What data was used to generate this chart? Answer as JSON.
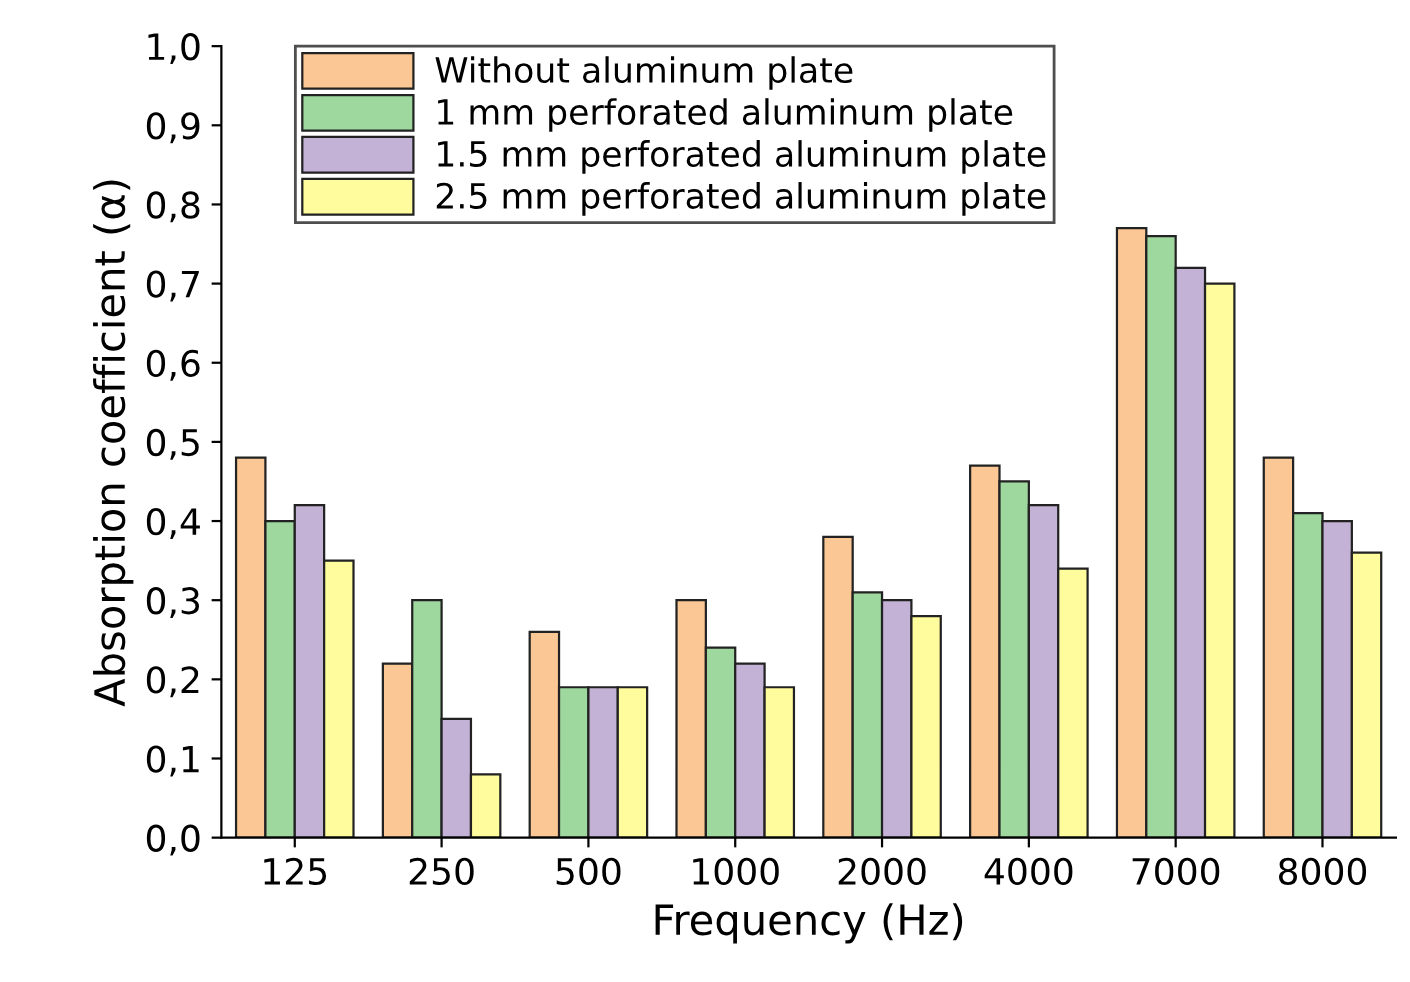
{
  "chart_data": {
    "type": "bar",
    "xlabel": "Frequency (Hz)",
    "ylabel": "Absorption coefficient (α)",
    "categories": [
      "125",
      "250",
      "500",
      "1000",
      "2000",
      "4000",
      "7000",
      "8000"
    ],
    "series": [
      {
        "name": "Without aluminum plate",
        "color": "#fbc794",
        "values": [
          0.48,
          0.22,
          0.26,
          0.3,
          0.38,
          0.47,
          0.77,
          0.48
        ]
      },
      {
        "name": "1 mm perforated aluminum plate",
        "color": "#9fd89f",
        "values": [
          0.4,
          0.3,
          0.19,
          0.24,
          0.31,
          0.45,
          0.76,
          0.41
        ]
      },
      {
        "name": "1.5 mm perforated aluminum plate",
        "color": "#c3b2d6",
        "values": [
          0.42,
          0.15,
          0.19,
          0.22,
          0.3,
          0.42,
          0.72,
          0.4
        ]
      },
      {
        "name": "2.5 mm perforated aluminum plate",
        "color": "#fffc9e",
        "values": [
          0.35,
          0.08,
          0.19,
          0.19,
          0.28,
          0.34,
          0.7,
          0.36
        ]
      }
    ],
    "ylim": [
      0,
      1.0
    ],
    "yticks": [
      {
        "value": 0,
        "label": "0,0"
      },
      {
        "value": 0.1,
        "label": "0,1"
      },
      {
        "value": 0.2,
        "label": "0,2"
      },
      {
        "value": 0.3,
        "label": "0,3"
      },
      {
        "value": 0.4,
        "label": "0,4"
      },
      {
        "value": 0.5,
        "label": "0,5"
      },
      {
        "value": 0.6,
        "label": "0,6"
      },
      {
        "value": 0.7,
        "label": "0,7"
      },
      {
        "value": 0.8,
        "label": "0,8"
      },
      {
        "value": 0.9,
        "label": "0,9"
      },
      {
        "value": 1.0,
        "label": "1,0"
      }
    ],
    "legend": "top left"
  }
}
